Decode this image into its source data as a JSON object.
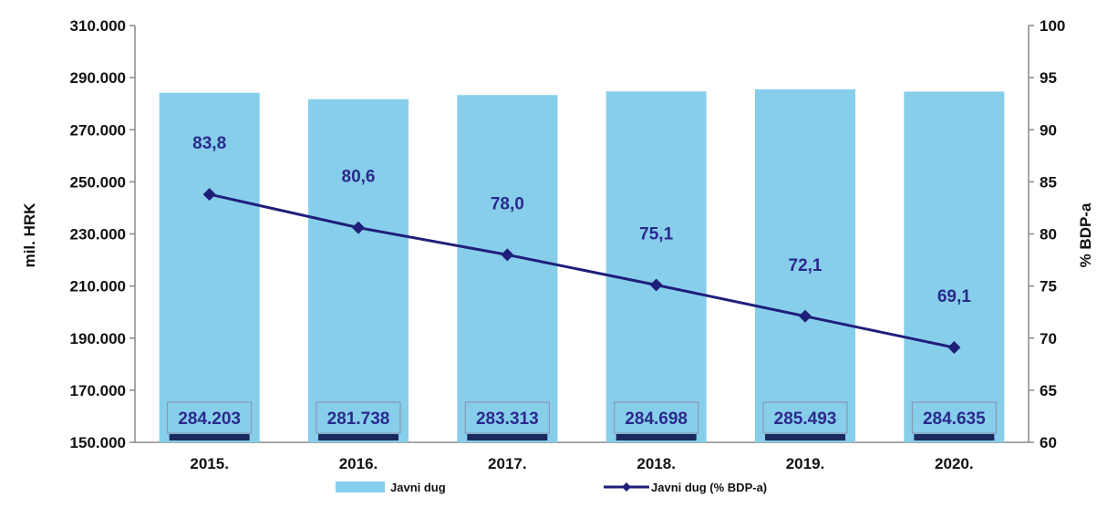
{
  "chart_data": {
    "type": "bar",
    "categories": [
      "2015.",
      "2016.",
      "2017.",
      "2018.",
      "2019.",
      "2020."
    ],
    "series": [
      {
        "name": "Javni dug",
        "type": "bar",
        "axis": "left",
        "values": [
          284203,
          281738,
          283313,
          284698,
          285493,
          284635
        ],
        "labels": [
          "284.203",
          "281.738",
          "283.313",
          "284.698",
          "285.493",
          "284.635"
        ],
        "color": "#87ceeb"
      },
      {
        "name": "Javni dug (% BDP-a)",
        "type": "line",
        "axis": "right",
        "values": [
          83.8,
          80.6,
          78.0,
          75.1,
          72.1,
          69.1
        ],
        "labels": [
          "83,8",
          "80,6",
          "78,0",
          "75,1",
          "72,1",
          "69,1"
        ],
        "color": "#1f1f7a"
      }
    ],
    "ylabel": "mil. HRK",
    "y2label": "% BDP-a",
    "ylim": [
      150000,
      310000
    ],
    "y2lim": [
      60,
      100
    ],
    "yticks": [
      "150.000",
      "170.000",
      "190.000",
      "210.000",
      "230.000",
      "250.000",
      "270.000",
      "290.000",
      "310.000"
    ],
    "y2ticks": [
      "60",
      "65",
      "70",
      "75",
      "80",
      "85",
      "90",
      "95",
      "100"
    ],
    "grid": false,
    "legend": "bottom"
  }
}
